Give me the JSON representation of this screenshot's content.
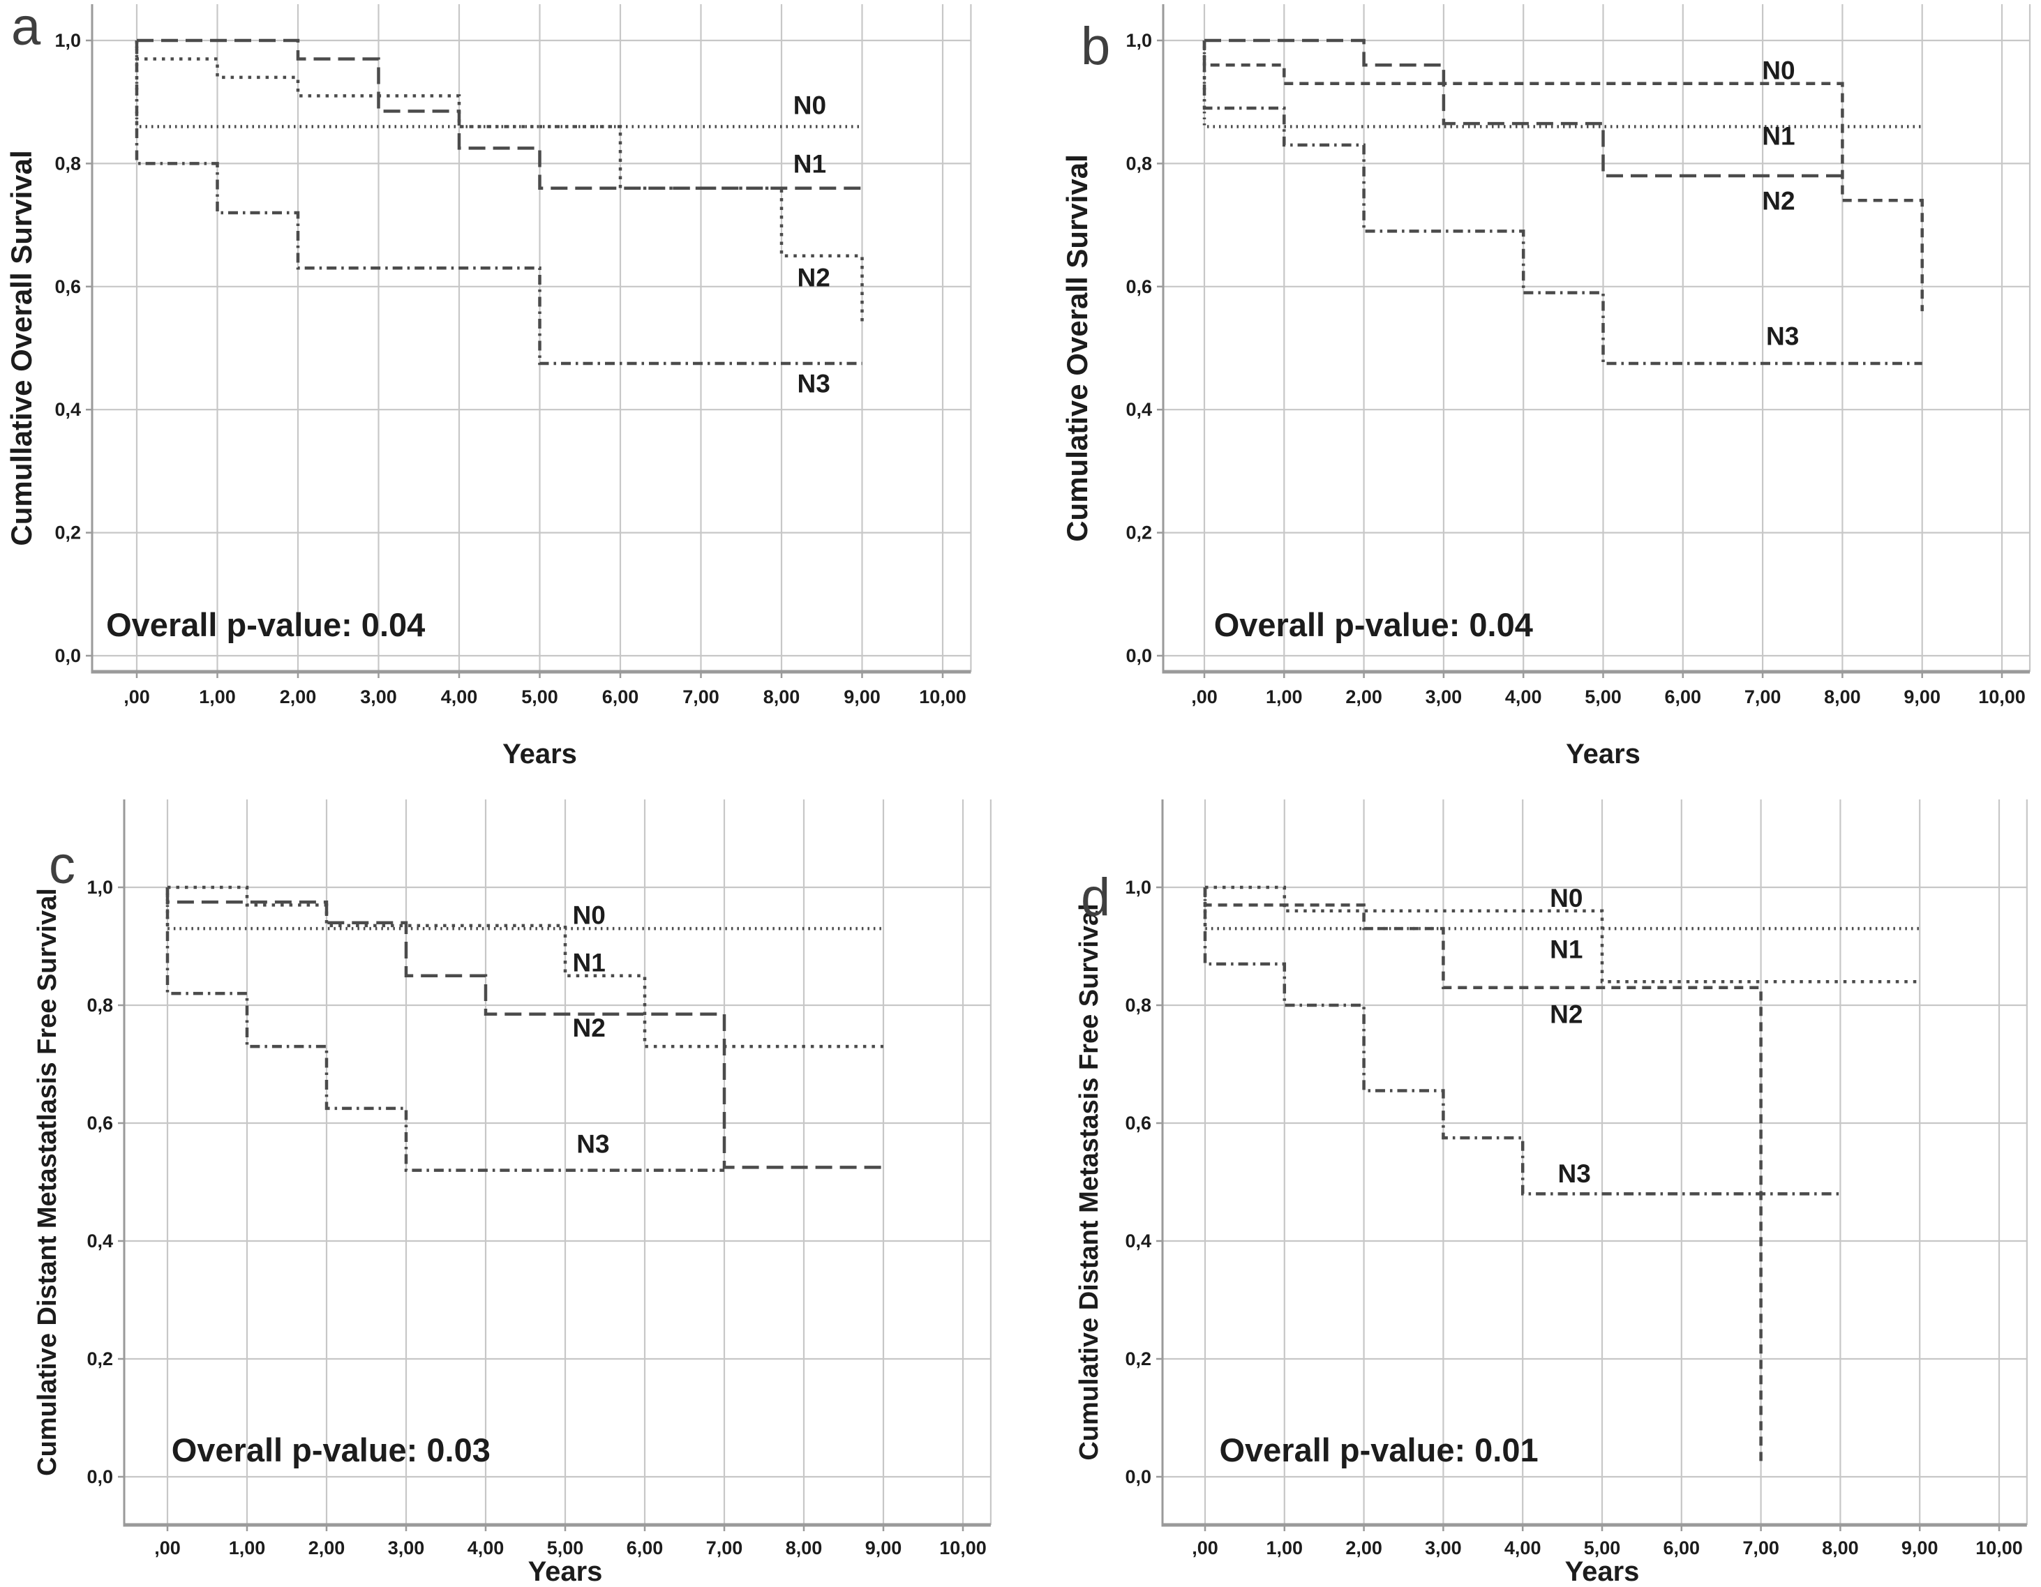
{
  "figure": {
    "colors": {
      "background": "#ffffff",
      "grid": "#c7c7c7",
      "axis": "#9a9a9a",
      "curve": "#4b4b4b",
      "text": "#1c1c1c",
      "letter": "#3f3f3f"
    }
  },
  "chart_data": [
    {
      "id": "a",
      "type": "line",
      "subtype": "kaplan-meier-step",
      "panel_letter": "a",
      "xlabel": "Years",
      "ylabel": "Cumullative Overall Survival",
      "annotation": "Overall p-value: 0.04",
      "annotation_pos": [
        -0.38,
        0.05
      ],
      "xlim": [
        0,
        10
      ],
      "ylim": [
        0.0,
        1.0
      ],
      "grid": true,
      "legend": "inline-labels",
      "x_ticks": {
        "labels": [
          ",00",
          "1,00",
          "2,00",
          "3,00",
          "4,00",
          "5,00",
          "6,00",
          "7,00",
          "8,00",
          "9,00",
          "10,00"
        ],
        "values": [
          0,
          1,
          2,
          3,
          4,
          5,
          6,
          7,
          8,
          9,
          10
        ]
      },
      "y_ticks": {
        "labels": [
          "1,0",
          "0,8",
          "0,6",
          "0,4",
          "0,2",
          "0,0"
        ],
        "values": [
          1.0,
          0.8,
          0.6,
          0.4,
          0.2,
          0.0
        ]
      },
      "series": [
        {
          "name": "N0",
          "dash": "fine-dot",
          "label_pos": [
            8.35,
            0.895
          ],
          "points": [
            [
              0,
              1.0
            ],
            [
              0,
              0.86
            ],
            [
              9,
              0.86
            ]
          ]
        },
        {
          "name": "N1",
          "dash": "long-dash",
          "label_pos": [
            8.35,
            0.8
          ],
          "points": [
            [
              0,
              1.0
            ],
            [
              2,
              1.0
            ],
            [
              2,
              0.97
            ],
            [
              3,
              0.97
            ],
            [
              3,
              0.885
            ],
            [
              4,
              0.885
            ],
            [
              4,
              0.825
            ],
            [
              5,
              0.825
            ],
            [
              5,
              0.76
            ],
            [
              9,
              0.76
            ]
          ]
        },
        {
          "name": "N2",
          "dash": "medium-dot",
          "label_pos": [
            8.4,
            0.615
          ],
          "points": [
            [
              0,
              1.0
            ],
            [
              0,
              0.97
            ],
            [
              1,
              0.97
            ],
            [
              1,
              0.94
            ],
            [
              2,
              0.94
            ],
            [
              2,
              0.91
            ],
            [
              4,
              0.91
            ],
            [
              4,
              0.86
            ],
            [
              6,
              0.86
            ],
            [
              6,
              0.76
            ],
            [
              8,
              0.76
            ],
            [
              8,
              0.65
            ],
            [
              9,
              0.65
            ],
            [
              9,
              0.54
            ]
          ]
        },
        {
          "name": "N3",
          "dash": "dash-dot",
          "label_pos": [
            8.4,
            0.443
          ],
          "points": [
            [
              0,
              1.0
            ],
            [
              0,
              0.8
            ],
            [
              1,
              0.8
            ],
            [
              1,
              0.72
            ],
            [
              2,
              0.72
            ],
            [
              2,
              0.63
            ],
            [
              5,
              0.63
            ],
            [
              5,
              0.475
            ],
            [
              9,
              0.475
            ]
          ]
        }
      ]
    },
    {
      "id": "b",
      "type": "line",
      "subtype": "kaplan-meier-step",
      "panel_letter": "b",
      "xlabel": "Years",
      "ylabel": "Cumulative Overall Survival",
      "annotation": "Overall p-value: 0.04",
      "annotation_pos": [
        0.12,
        0.05
      ],
      "xlim": [
        0,
        10
      ],
      "ylim": [
        0.0,
        1.0
      ],
      "grid": true,
      "legend": "inline-labels",
      "x_ticks": {
        "labels": [
          ",00",
          "1,00",
          "2,00",
          "3,00",
          "4,00",
          "5,00",
          "6,00",
          "7,00",
          "8,00",
          "9,00",
          "10,00"
        ],
        "values": [
          0,
          1,
          2,
          3,
          4,
          5,
          6,
          7,
          8,
          9,
          10
        ]
      },
      "y_ticks": {
        "labels": [
          "1,0",
          "0,8",
          "0,6",
          "0,4",
          "0,2",
          "0,0"
        ],
        "values": [
          1.0,
          0.8,
          0.6,
          0.4,
          0.2,
          0.0
        ]
      },
      "series": [
        {
          "name": "N0",
          "dash": "short-dash",
          "label_pos": [
            7.2,
            0.952
          ],
          "points": [
            [
              0,
              1.0
            ],
            [
              0,
              0.96
            ],
            [
              1,
              0.96
            ],
            [
              1,
              0.93
            ],
            [
              8,
              0.93
            ],
            [
              8,
              0.74
            ],
            [
              9,
              0.74
            ],
            [
              9,
              0.56
            ]
          ]
        },
        {
          "name": "N1",
          "dash": "fine-dot",
          "label_pos": [
            7.2,
            0.845
          ],
          "points": [
            [
              0,
              1.0
            ],
            [
              0,
              0.86
            ],
            [
              9,
              0.86
            ]
          ]
        },
        {
          "name": "N2",
          "dash": "long-dash",
          "label_pos": [
            7.2,
            0.74
          ],
          "points": [
            [
              0,
              1.0
            ],
            [
              2,
              1.0
            ],
            [
              2,
              0.96
            ],
            [
              3,
              0.96
            ],
            [
              3,
              0.865
            ],
            [
              5,
              0.865
            ],
            [
              5,
              0.78
            ],
            [
              8,
              0.78
            ]
          ]
        },
        {
          "name": "N3",
          "dash": "dash-dot",
          "label_pos": [
            7.25,
            0.52
          ],
          "points": [
            [
              0,
              1.0
            ],
            [
              0,
              0.89
            ],
            [
              1,
              0.89
            ],
            [
              1,
              0.83
            ],
            [
              2,
              0.83
            ],
            [
              2,
              0.69
            ],
            [
              4,
              0.69
            ],
            [
              4,
              0.59
            ],
            [
              5,
              0.59
            ],
            [
              5,
              0.475
            ],
            [
              9,
              0.475
            ]
          ]
        }
      ]
    },
    {
      "id": "c",
      "type": "line",
      "subtype": "kaplan-meier-step",
      "panel_letter": "c",
      "xlabel": "Years",
      "ylabel": "Cumulative Distant Metastatlasis Free Survival",
      "annotation": "Overall p-value: 0.03",
      "annotation_pos": [
        0.05,
        0.045
      ],
      "xlim": [
        0,
        10
      ],
      "ylim": [
        0.0,
        1.0
      ],
      "grid": true,
      "legend": "inline-labels",
      "x_ticks": {
        "labels": [
          ",00",
          "1,00",
          "2,00",
          "3,00",
          "4,00",
          "5,00",
          "6,00",
          "7,00",
          "8,00",
          "9,00",
          "10,00"
        ],
        "values": [
          0,
          1,
          2,
          3,
          4,
          5,
          6,
          7,
          8,
          9,
          10
        ]
      },
      "y_ticks": {
        "labels": [
          "1,0",
          "0,8",
          "0,6",
          "0,4",
          "0,2",
          "0,0"
        ],
        "values": [
          1.0,
          0.8,
          0.6,
          0.4,
          0.2,
          0.0
        ]
      },
      "series": [
        {
          "name": "N0",
          "dash": "fine-dot",
          "label_pos": [
            5.3,
            0.953
          ],
          "points": [
            [
              0,
              1.0
            ],
            [
              0,
              0.93
            ],
            [
              9,
              0.93
            ]
          ]
        },
        {
          "name": "N1",
          "dash": "medium-dot",
          "label_pos": [
            5.3,
            0.873
          ],
          "points": [
            [
              0,
              1.0
            ],
            [
              1,
              1.0
            ],
            [
              1,
              0.97
            ],
            [
              2,
              0.97
            ],
            [
              2,
              0.935
            ],
            [
              5,
              0.935
            ],
            [
              5,
              0.85
            ],
            [
              6,
              0.85
            ],
            [
              6,
              0.73
            ],
            [
              9,
              0.73
            ]
          ]
        },
        {
          "name": "N2",
          "dash": "long-dash",
          "label_pos": [
            5.3,
            0.762
          ],
          "points": [
            [
              0,
              1.0
            ],
            [
              0,
              0.975
            ],
            [
              2,
              0.975
            ],
            [
              2,
              0.94
            ],
            [
              3,
              0.94
            ],
            [
              3,
              0.85
            ],
            [
              4,
              0.85
            ],
            [
              4,
              0.785
            ],
            [
              7,
              0.785
            ],
            [
              7,
              0.525
            ],
            [
              9,
              0.525
            ]
          ]
        },
        {
          "name": "N3",
          "dash": "dash-dot",
          "label_pos": [
            5.35,
            0.565
          ],
          "points": [
            [
              0,
              1.0
            ],
            [
              0,
              0.82
            ],
            [
              1,
              0.82
            ],
            [
              1,
              0.73
            ],
            [
              2,
              0.73
            ],
            [
              2,
              0.625
            ],
            [
              3,
              0.625
            ],
            [
              3,
              0.52
            ],
            [
              7,
              0.52
            ]
          ]
        }
      ]
    },
    {
      "id": "d",
      "type": "line",
      "subtype": "kaplan-meier-step",
      "panel_letter": "d",
      "xlabel": "Years",
      "ylabel": "Cumulative Distant Metastasis Free Survival",
      "annotation": "Overall p-value: 0.01",
      "annotation_pos": [
        0.18,
        0.045
      ],
      "xlim": [
        0,
        10
      ],
      "ylim": [
        0.0,
        1.0
      ],
      "grid": true,
      "legend": "inline-labels",
      "x_ticks": {
        "labels": [
          ",00",
          "1,00",
          "2,00",
          "3,00",
          "4,00",
          "5,00",
          "6,00",
          "7,00",
          "8,00",
          "9,00",
          "10,00"
        ],
        "values": [
          0,
          1,
          2,
          3,
          4,
          5,
          6,
          7,
          8,
          9,
          10
        ]
      },
      "y_ticks": {
        "labels": [
          "1,0",
          "0,8",
          "0,6",
          "0,4",
          "0,2",
          "0,0"
        ],
        "values": [
          1.0,
          0.8,
          0.6,
          0.4,
          0.2,
          0.0
        ]
      },
      "series": [
        {
          "name": "N0",
          "dash": "medium-dot",
          "label_pos": [
            4.55,
            0.982
          ],
          "points": [
            [
              0,
              1.0
            ],
            [
              1,
              1.0
            ],
            [
              1,
              0.96
            ],
            [
              5,
              0.96
            ],
            [
              5,
              0.84
            ],
            [
              9,
              0.84
            ]
          ]
        },
        {
          "name": "N1",
          "dash": "fine-dot",
          "label_pos": [
            4.55,
            0.895
          ],
          "points": [
            [
              0,
              1.0
            ],
            [
              0,
              0.93
            ],
            [
              9,
              0.93
            ]
          ]
        },
        {
          "name": "N2",
          "dash": "short-dash",
          "label_pos": [
            4.55,
            0.785
          ],
          "points": [
            [
              0,
              1.0
            ],
            [
              0,
              0.97
            ],
            [
              2,
              0.97
            ],
            [
              2,
              0.93
            ],
            [
              3,
              0.93
            ],
            [
              3,
              0.83
            ],
            [
              7,
              0.83
            ],
            [
              7,
              0.02
            ]
          ]
        },
        {
          "name": "N3",
          "dash": "dash-dot",
          "label_pos": [
            4.65,
            0.515
          ],
          "points": [
            [
              0,
              1.0
            ],
            [
              0,
              0.87
            ],
            [
              1,
              0.87
            ],
            [
              1,
              0.8
            ],
            [
              2,
              0.8
            ],
            [
              2,
              0.655
            ],
            [
              3,
              0.655
            ],
            [
              3,
              0.575
            ],
            [
              4,
              0.575
            ],
            [
              4,
              0.48
            ],
            [
              8,
              0.48
            ]
          ]
        }
      ]
    }
  ]
}
